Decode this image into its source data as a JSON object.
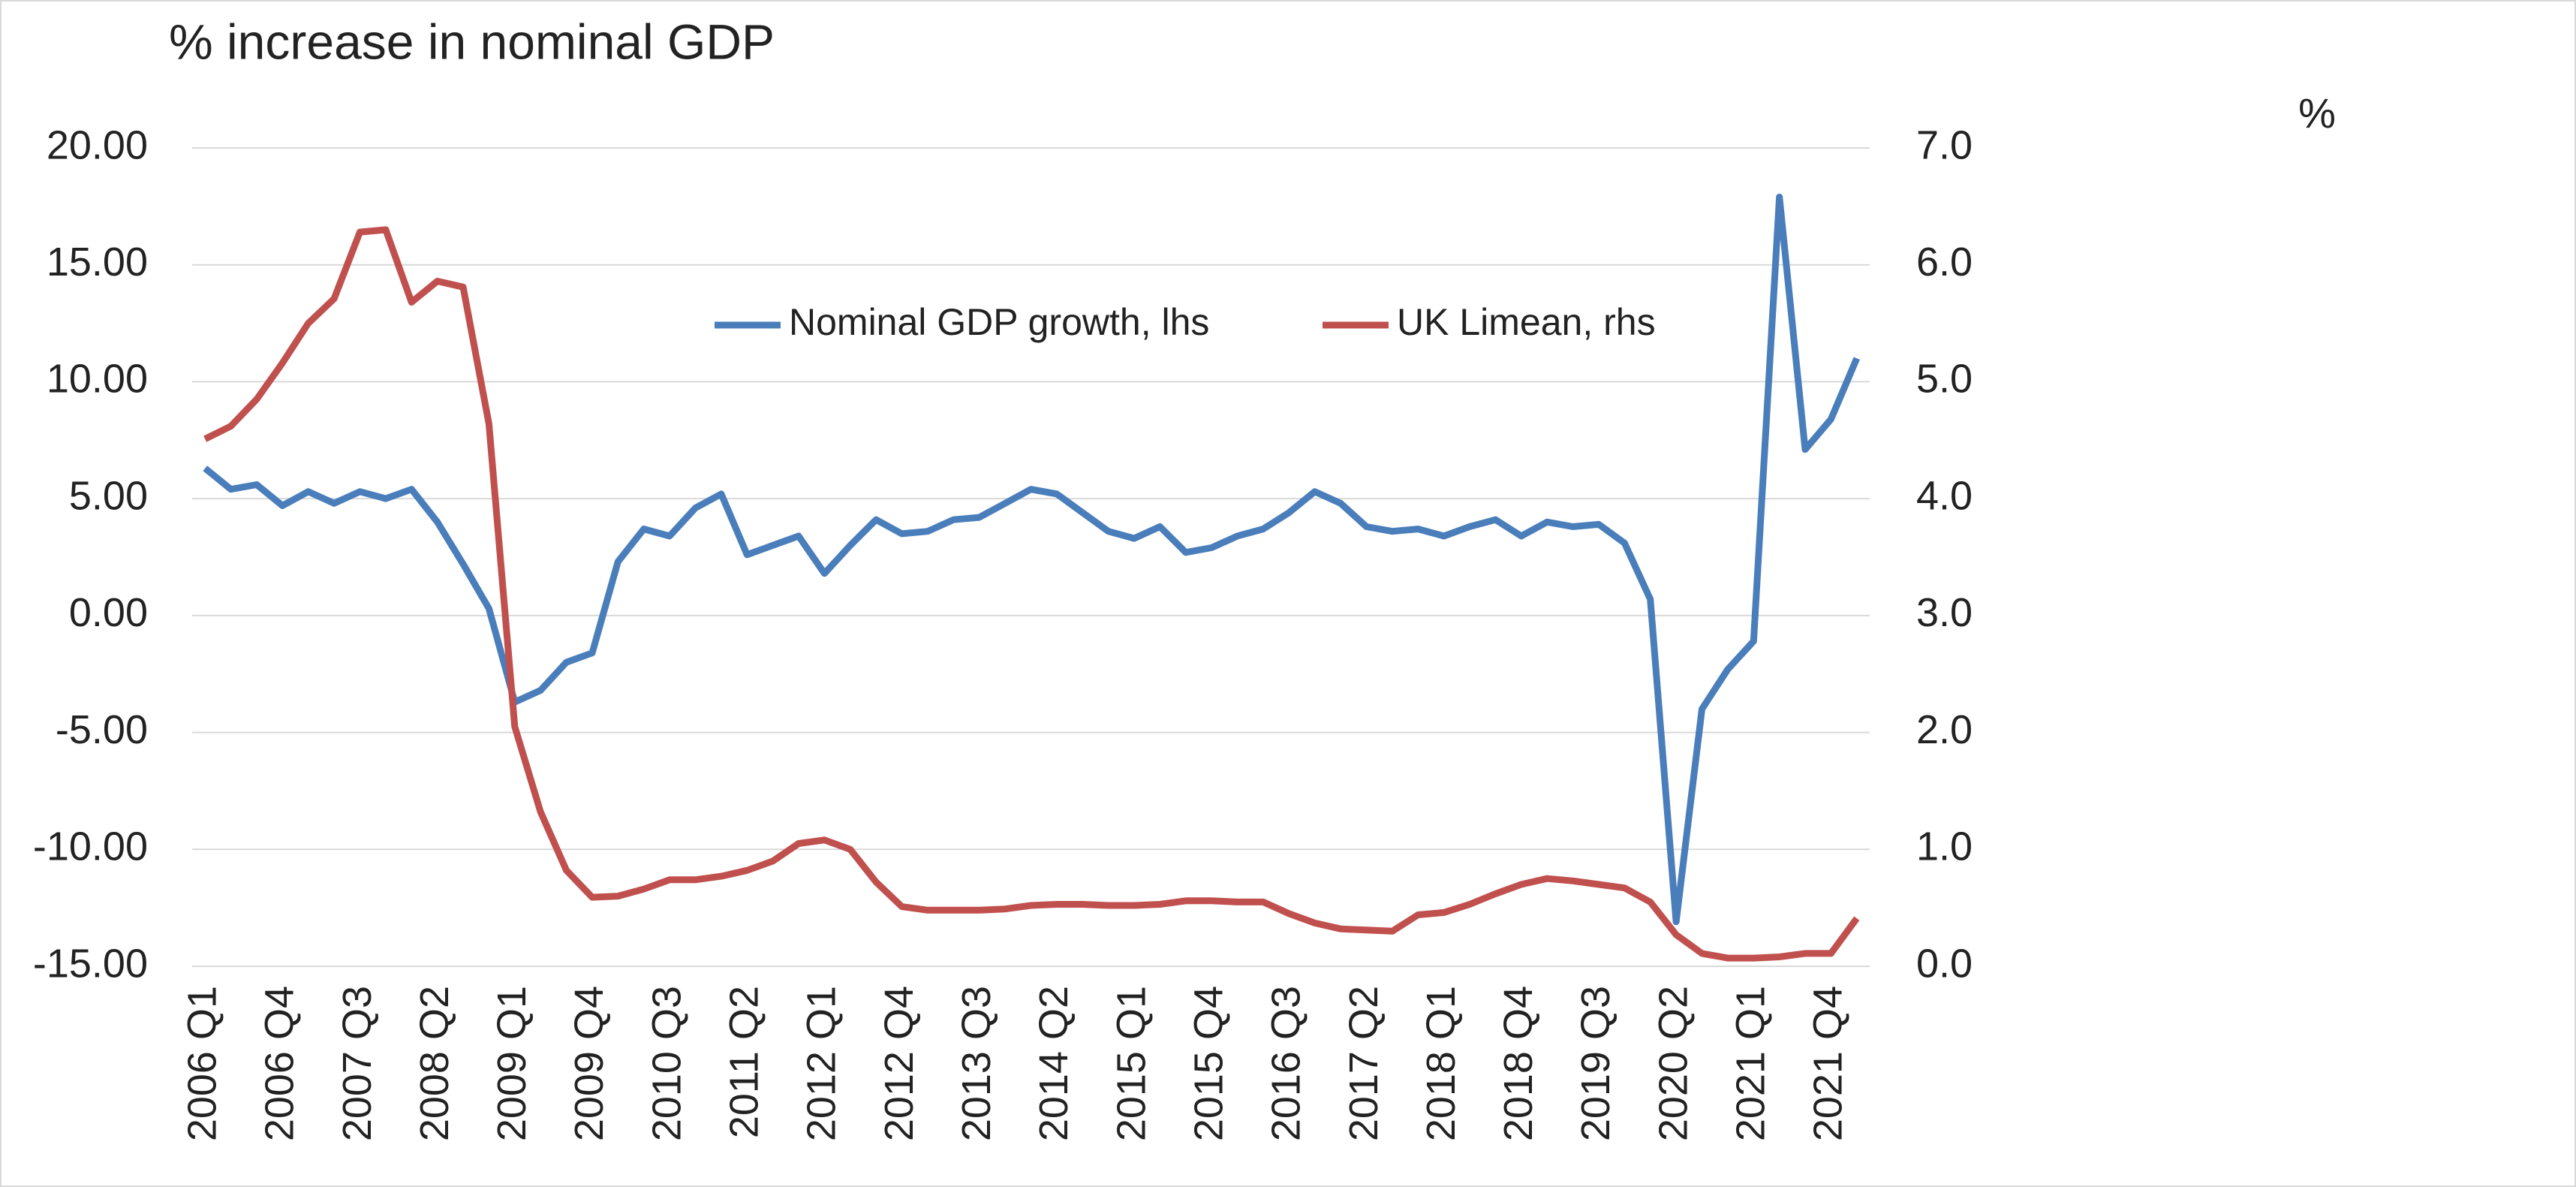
{
  "chart_data": {
    "type": "line",
    "title": "% increase in nominal GDP",
    "y2_label": "%",
    "categories": [
      "2006 Q1",
      null,
      null,
      "2006 Q4",
      null,
      null,
      "2007 Q3",
      null,
      null,
      "2008 Q2",
      null,
      null,
      "2009 Q1",
      null,
      null,
      "2009 Q4",
      null,
      null,
      "2010 Q3",
      null,
      null,
      "2011 Q2",
      null,
      null,
      "2012 Q1",
      null,
      null,
      "2012 Q4",
      null,
      null,
      "2013 Q3",
      null,
      null,
      "2014 Q2",
      null,
      null,
      "2015 Q1",
      null,
      null,
      "2015 Q4",
      null,
      null,
      "2016 Q3",
      null,
      null,
      "2017 Q2",
      null,
      null,
      "2018 Q1",
      null,
      null,
      "2018 Q4",
      null,
      null,
      "2019 Q3",
      null,
      null,
      "2020 Q2",
      null,
      null,
      "2021 Q1",
      null,
      null,
      "2021 Q4",
      null
    ],
    "series": [
      {
        "name": "Nominal GDP growth, lhs",
        "color": "#4a7ebb",
        "axis": "y",
        "values": [
          6.3,
          5.4,
          5.6,
          4.7,
          5.3,
          4.8,
          5.3,
          5.0,
          5.4,
          4.0,
          2.2,
          0.3,
          -3.7,
          -3.2,
          -2.0,
          -1.6,
          2.3,
          3.7,
          3.4,
          4.6,
          5.2,
          2.6,
          3.0,
          3.4,
          1.8,
          3.0,
          4.1,
          3.5,
          3.6,
          4.1,
          4.2,
          4.8,
          5.4,
          5.2,
          4.4,
          3.6,
          3.3,
          3.8,
          2.7,
          2.9,
          3.4,
          3.7,
          4.4,
          5.3,
          4.8,
          3.8,
          3.6,
          3.7,
          3.4,
          3.8,
          4.1,
          3.4,
          4.0,
          3.8,
          3.9,
          3.1,
          0.7,
          -13.1,
          -4.0,
          -2.3,
          -1.1,
          17.9,
          7.1,
          8.4,
          11.0
        ]
      },
      {
        "name": "UK Limean, rhs",
        "color": "#c0504d",
        "axis": "y2",
        "values": [
          4.51,
          4.62,
          4.85,
          5.16,
          5.5,
          5.71,
          6.28,
          6.3,
          5.68,
          5.86,
          5.81,
          4.64,
          2.05,
          1.32,
          0.82,
          0.59,
          0.6,
          0.66,
          0.74,
          0.74,
          0.77,
          0.82,
          0.9,
          1.05,
          1.08,
          1.0,
          0.72,
          0.51,
          0.48,
          0.48,
          0.48,
          0.49,
          0.52,
          0.53,
          0.53,
          0.52,
          0.52,
          0.53,
          0.56,
          0.56,
          0.55,
          0.55,
          0.45,
          0.37,
          0.32,
          0.31,
          0.3,
          0.44,
          0.46,
          0.53,
          0.62,
          0.7,
          0.75,
          0.73,
          0.7,
          0.67,
          0.55,
          0.27,
          0.11,
          0.07,
          0.07,
          0.08,
          0.11,
          0.11,
          0.41
        ]
      }
    ],
    "ylim": [
      -15,
      20
    ],
    "yticks": [
      {
        "value": -15,
        "label": "-15.00"
      },
      {
        "value": -10,
        "label": "-10.00"
      },
      {
        "value": -5,
        "label": "-5.00"
      },
      {
        "value": 0,
        "label": "0.00"
      },
      {
        "value": 5,
        "label": "5.00"
      },
      {
        "value": 10,
        "label": "10.00"
      },
      {
        "value": 15,
        "label": "15.00"
      },
      {
        "value": 20,
        "label": "20.00"
      }
    ],
    "y2lim": [
      0,
      7
    ],
    "y2ticks": [
      {
        "value": 0,
        "label": "0.0"
      },
      {
        "value": 1,
        "label": "1.0"
      },
      {
        "value": 2,
        "label": "2.0"
      },
      {
        "value": 3,
        "label": "3.0"
      },
      {
        "value": 4,
        "label": "4.0"
      },
      {
        "value": 5,
        "label": "5.0"
      },
      {
        "value": 6,
        "label": "6.0"
      },
      {
        "value": 7,
        "label": "7.0"
      }
    ],
    "grid": true,
    "legend": "top-center"
  }
}
